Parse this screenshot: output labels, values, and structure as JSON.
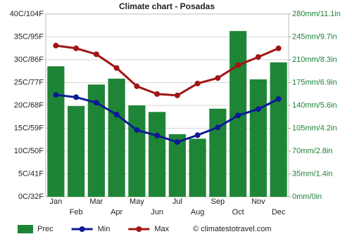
{
  "chart_data": {
    "type": "combo",
    "title": "Climate chart - Posadas",
    "categories": [
      "Jan",
      "Feb",
      "Mar",
      "Apr",
      "May",
      "Jun",
      "Jul",
      "Aug",
      "Sep",
      "Oct",
      "Nov",
      "Dec"
    ],
    "series": [
      {
        "name": "Prec",
        "type": "bar",
        "axis": "y2",
        "color": "#1e8536",
        "values": [
          200,
          139,
          172,
          181,
          140,
          130,
          96,
          89,
          135,
          254,
          180,
          206
        ]
      },
      {
        "name": "Min",
        "type": "line",
        "axis": "y",
        "color": "#0d1a94",
        "values": [
          22.3,
          21.8,
          20.6,
          18,
          14.6,
          13.4,
          12,
          13.5,
          15.2,
          17.8,
          19.2,
          21.4
        ]
      },
      {
        "name": "Max",
        "type": "line",
        "axis": "y",
        "color": "#a01515",
        "values": [
          33.1,
          32.5,
          31.2,
          28.2,
          24.2,
          22.5,
          22.2,
          24.8,
          26,
          28.8,
          30.6,
          32.5
        ]
      }
    ],
    "ylim": [
      0,
      40
    ],
    "yticks": [
      {
        "value": 0,
        "label": "0C/32F"
      },
      {
        "value": 5,
        "label": "5C/41F"
      },
      {
        "value": 10,
        "label": "10C/50F"
      },
      {
        "value": 15,
        "label": "15C/59F"
      },
      {
        "value": 20,
        "label": "20C/68F"
      },
      {
        "value": 25,
        "label": "25C/77F"
      },
      {
        "value": 30,
        "label": "30C/86F"
      },
      {
        "value": 35,
        "label": "35C/95F"
      },
      {
        "value": 40,
        "label": "40C/104F"
      }
    ],
    "y2lim": [
      0,
      280
    ],
    "y2ticks": [
      {
        "value": 0,
        "label": "0mm/0in"
      },
      {
        "value": 35,
        "label": "35mm/1.4in"
      },
      {
        "value": 70,
        "label": "70mm/2.8in"
      },
      {
        "value": 105,
        "label": "105mm/4.2in"
      },
      {
        "value": 140,
        "label": "140mm/5.6in"
      },
      {
        "value": 175,
        "label": "175mm/6.9in"
      },
      {
        "value": 210,
        "label": "210mm/8.3in"
      },
      {
        "value": 245,
        "label": "245mm/9.7in"
      },
      {
        "value": 280,
        "label": "280mm/11.1in"
      }
    ],
    "grid": true,
    "legend": "bottom",
    "source": "© climatestotravel.com"
  }
}
